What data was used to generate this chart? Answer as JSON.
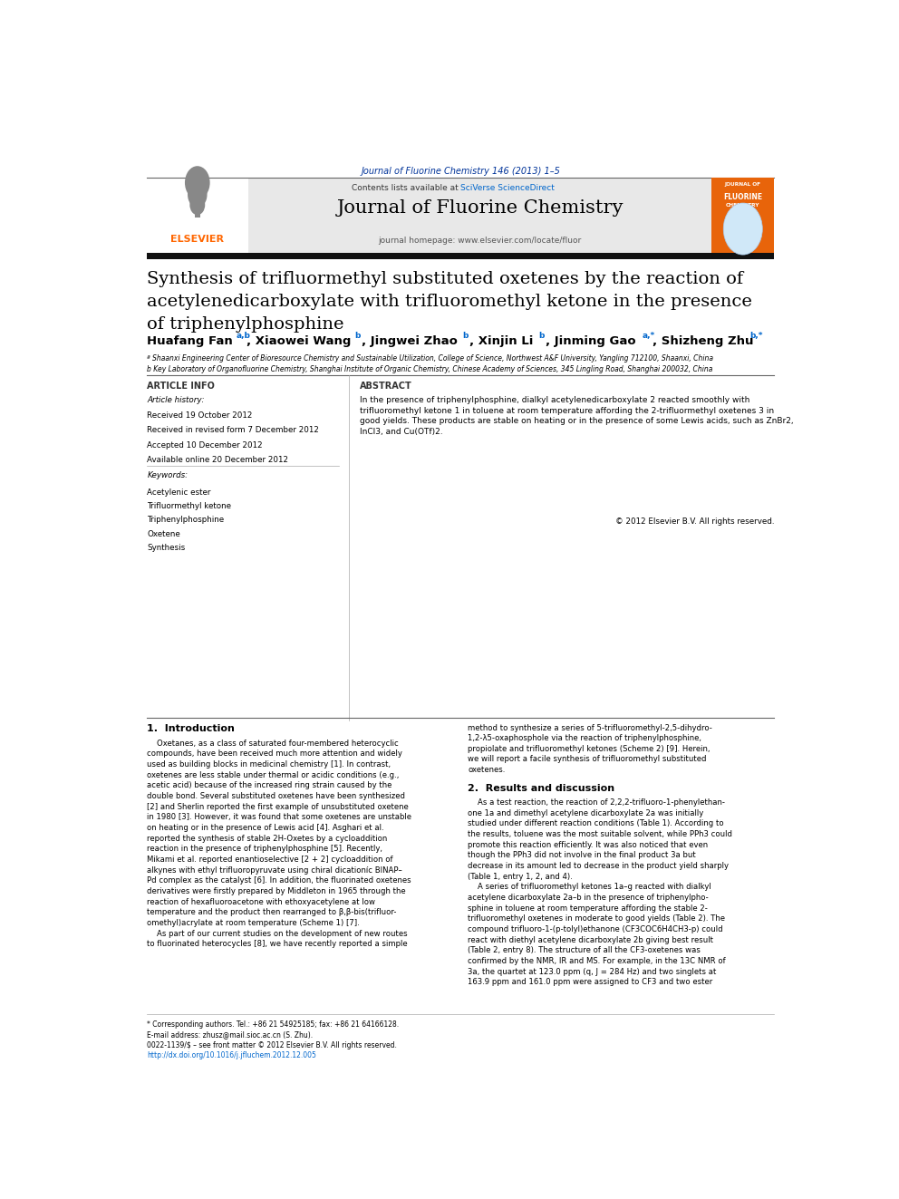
{
  "page_width": 9.92,
  "page_height": 13.23,
  "bg_color": "#ffffff",
  "journal_header": "Journal of Fluorine Chemistry 146 (2013) 1–5",
  "journal_header_color": "#003399",
  "contents_text": "Contents lists available at ",
  "sciverse_text": "SciVerse ScienceDirect",
  "sciverse_color": "#0066cc",
  "journal_name": "Journal of Fluorine Chemistry",
  "journal_homepage": "journal homepage: www.elsevier.com/locate/fluor",
  "header_bg": "#e8e8e8",
  "elsevier_color": "#ff6600",
  "title": "Synthesis of trifluormethyl substituted oxetenes by the reaction of\nacetylenedicarboxylate with trifluoromethyl ketone in the presence\nof triphenylphosphine",
  "affiliation1": "ª Shaanxi Engineering Center of Bioresource Chemistry and Sustainable Utilization, College of Science, Northwest A&F University, Yangling 712100, Shaanxi, China",
  "affiliation2": "b Key Laboratory of Organofluorine Chemistry, Shanghai Institute of Organic Chemistry, Chinese Academy of Sciences, 345 Lingling Road, Shanghai 200032, China",
  "article_info_label": "ARTICLE INFO",
  "abstract_label": "ABSTRACT",
  "article_history_label": "Article history:",
  "article_history": [
    "Received 19 October 2012",
    "Received in revised form 7 December 2012",
    "Accepted 10 December 2012",
    "Available online 20 December 2012"
  ],
  "keywords_label": "Keywords:",
  "keywords": [
    "Acetylenic ester",
    "Trifluormethyl ketone",
    "Triphenylphosphine",
    "Oxetene",
    "Synthesis"
  ],
  "abstract_text": "In the presence of triphenylphosphine, dialkyl acetylenedicarboxylate 2 reacted smoothly with\ntrifluoromethyl ketone 1 in toluene at room temperature affording the 2-trifluormethyl oxetenes 3 in\ngood yields. These products are stable on heating or in the presence of some Lewis acids, such as ZnBr2,\nInCl3, and Cu(OTf)2.",
  "copyright": "© 2012 Elsevier B.V. All rights reserved.",
  "section1_title": "1.  Introduction",
  "section1_col1": "    Oxetanes, as a class of saturated four-membered heterocyclic\ncompounds, have been received much more attention and widely\nused as building blocks in medicinal chemistry [1]. In contrast,\noxetenes are less stable under thermal or acidic conditions (e.g.,\nacetic acid) because of the increased ring strain caused by the\ndouble bond. Several substituted oxetenes have been synthesized\n[2] and Sherlin reported the first example of unsubstituted oxetene\nin 1980 [3]. However, it was found that some oxetenes are unstable\non heating or in the presence of Lewis acid [4]. Asghari et al.\nreported the synthesis of stable 2H-Oxetes by a cycloaddition\nreaction in the presence of triphenylphosphine [5]. Recently,\nMikami et al. reported enantioselective [2 + 2] cycloaddition of\nalkynes with ethyl trifluoropyruvate using chiral dicationíc BINAP–\nPd complex as the catalyst [6]. In addition, the fluorinated oxetenes\nderivatives were firstly prepared by Middleton in 1965 through the\nreaction of hexafluoroacetone with ethoxyacetylene at low\ntemperature and the product then rearranged to β,β-bis(trifluor-\nomethyl)acrylate at room temperature (Scheme 1) [7].\n    As part of our current studies on the development of new routes\nto fluorinated heterocycles [8], we have recently reported a simple",
  "section1_col2": "method to synthesize a series of 5-trifluoromethyl-2,5-dihydro-\n1,2-λ5-oxaphosphole via the reaction of triphenylphosphine,\npropiolate and trifluoromethyl ketones (Scheme 2) [9]. Herein,\nwe will report a facile synthesis of trifluoromethyl substituted\noxetenes.",
  "section2_title": "2.  Results and discussion",
  "section2_col2": "    As a test reaction, the reaction of 2,2,2-trifluoro-1-phenylethan-\none 1a and dimethyl acetylene dicarboxylate 2a was initially\nstudied under different reaction conditions (Table 1). According to\nthe results, toluene was the most suitable solvent, while PPh3 could\npromote this reaction efficiently. It was also noticed that even\nthough the PPh3 did not involve in the final product 3a but\ndecrease in its amount led to decrease in the product yield sharply\n(Table 1, entry 1, 2, and 4).\n    A series of trifluoromethyl ketones 1a–g reacted with dialkyl\nacetylene dicarboxylate 2a–b in the presence of triphenylpho-\nsphine in toluene at room temperature affording the stable 2-\ntrifluoromethyl oxetenes in moderate to good yields (Table 2). The\ncompound trifluoro-1-(p-tolyl)ethanone (CF3COC6H4CH3-p) could\nreact with diethyl acetylene dicarboxylate 2b giving best result\n(Table 2, entry 8). The structure of all the CF3-oxetenes was\nconfirmed by the NMR, IR and MS. For example, in the 13C NMR of\n3a, the quartet at 123.0 ppm (q, J = 284 Hz) and two singlets at\n163.9 ppm and 161.0 ppm were assigned to CF3 and two ester",
  "footnote_asterisk": "* Corresponding authors. Tel.: +86 21 54925185; fax: +86 21 64166128.",
  "footnote_email": "E-mail address: zhusz@mail.sioc.ac.cn (S. Zhu).",
  "issn_text": "0022-1139/$ – see front matter © 2012 Elsevier B.V. All rights reserved.",
  "doi_text": "http://dx.doi.org/10.1016/j.jfluchem.2012.12.005"
}
